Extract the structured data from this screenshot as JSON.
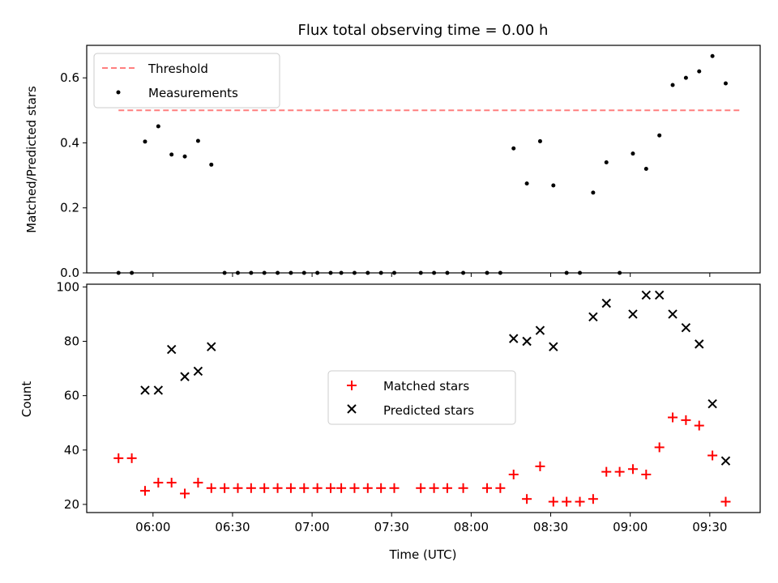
{
  "title": "Flux total observing time = 0.00 h",
  "chart_data": [
    {
      "type": "scatter",
      "ylabel": "Matched/Predicted stars",
      "ylim": [
        0,
        0.7
      ],
      "yticks": [
        0.0,
        0.2,
        0.4,
        0.6
      ],
      "ytick_labels": [
        "0.0",
        "0.2",
        "0.4",
        "0.6"
      ],
      "xlim": [
        "05:35",
        "09:49"
      ],
      "xticks": [
        "06:00",
        "06:30",
        "07:00",
        "07:30",
        "08:00",
        "08:30",
        "09:00",
        "09:30"
      ],
      "grid": false,
      "legend_position": "upper-left",
      "threshold": {
        "name": "Threshold",
        "value": 0.5,
        "color": "#ff7f7f",
        "x_start": "05:47",
        "x_end": "09:42"
      },
      "series": [
        {
          "name": "Measurements",
          "color": "#000000",
          "marker": "dot",
          "x": [
            "05:47",
            "05:52",
            "05:57",
            "06:02",
            "06:07",
            "06:12",
            "06:17",
            "06:22",
            "06:27",
            "06:32",
            "06:37",
            "06:42",
            "06:47",
            "06:52",
            "06:57",
            "07:02",
            "07:07",
            "07:11",
            "07:16",
            "07:21",
            "07:26",
            "07:31",
            "07:41",
            "07:46",
            "07:51",
            "07:57",
            "08:06",
            "08:11",
            "08:16",
            "08:21",
            "08:26",
            "08:31",
            "08:36",
            "08:41",
            "08:46",
            "08:51",
            "08:56",
            "09:01",
            "09:06",
            "09:11",
            "09:16",
            "09:21",
            "09:26",
            "09:31",
            "09:36"
          ],
          "y": [
            0,
            0,
            0.404,
            0.451,
            0.364,
            0.358,
            0.406,
            0.333,
            0,
            0,
            0,
            0,
            0,
            0,
            0,
            0,
            0,
            0,
            0,
            0,
            0,
            0,
            0,
            0,
            0,
            0,
            0,
            0,
            0.383,
            0.275,
            0.405,
            0.269,
            0,
            0,
            0.247,
            0.34,
            0,
            0.367,
            0.32,
            0.423,
            0.578,
            0.6,
            0.62,
            0.667,
            0.583
          ]
        }
      ]
    },
    {
      "type": "scatter",
      "xlabel": "Time (UTC)",
      "ylabel": "Count",
      "ylim": [
        17,
        101
      ],
      "yticks": [
        20,
        40,
        60,
        80,
        100
      ],
      "ytick_labels": [
        "20",
        "40",
        "60",
        "80",
        "100"
      ],
      "xlim": [
        "05:35",
        "09:49"
      ],
      "xticks": [
        "06:00",
        "06:30",
        "07:00",
        "07:30",
        "08:00",
        "08:30",
        "09:00",
        "09:30"
      ],
      "xtick_labels": [
        "06:00",
        "06:30",
        "07:00",
        "07:30",
        "08:00",
        "08:30",
        "09:00",
        "09:30"
      ],
      "grid": false,
      "legend_position": "center",
      "series": [
        {
          "name": "Matched stars",
          "color": "#ff0000",
          "marker": "plus",
          "x": [
            "05:47",
            "05:52",
            "05:57",
            "06:02",
            "06:07",
            "06:12",
            "06:17",
            "06:22",
            "06:27",
            "06:32",
            "06:37",
            "06:42",
            "06:47",
            "06:52",
            "06:57",
            "07:02",
            "07:07",
            "07:11",
            "07:16",
            "07:21",
            "07:26",
            "07:31",
            "07:41",
            "07:46",
            "07:51",
            "07:57",
            "08:06",
            "08:11",
            "08:16",
            "08:21",
            "08:26",
            "08:31",
            "08:36",
            "08:41",
            "08:46",
            "08:51",
            "08:56",
            "09:01",
            "09:06",
            "09:11",
            "09:16",
            "09:21",
            "09:26",
            "09:31",
            "09:36"
          ],
          "y": [
            37,
            37,
            25,
            28,
            28,
            24,
            28,
            26,
            26,
            26,
            26,
            26,
            26,
            26,
            26,
            26,
            26,
            26,
            26,
            26,
            26,
            26,
            26,
            26,
            26,
            26,
            26,
            26,
            31,
            22,
            34,
            21,
            21,
            21,
            22,
            32,
            32,
            33,
            31,
            41,
            52,
            51,
            49,
            38,
            21
          ]
        },
        {
          "name": "Predicted stars",
          "color": "#000000",
          "marker": "x",
          "x": [
            "05:57",
            "06:02",
            "06:07",
            "06:12",
            "06:17",
            "06:22",
            "08:16",
            "08:21",
            "08:26",
            "08:31",
            "08:46",
            "08:51",
            "09:01",
            "09:06",
            "09:11",
            "09:16",
            "09:21",
            "09:26",
            "09:31",
            "09:36"
          ],
          "y": [
            62,
            62,
            77,
            67,
            69,
            78,
            81,
            80,
            84,
            78,
            89,
            94,
            90,
            97,
            97,
            90,
            85,
            79,
            57,
            36
          ]
        }
      ]
    }
  ]
}
